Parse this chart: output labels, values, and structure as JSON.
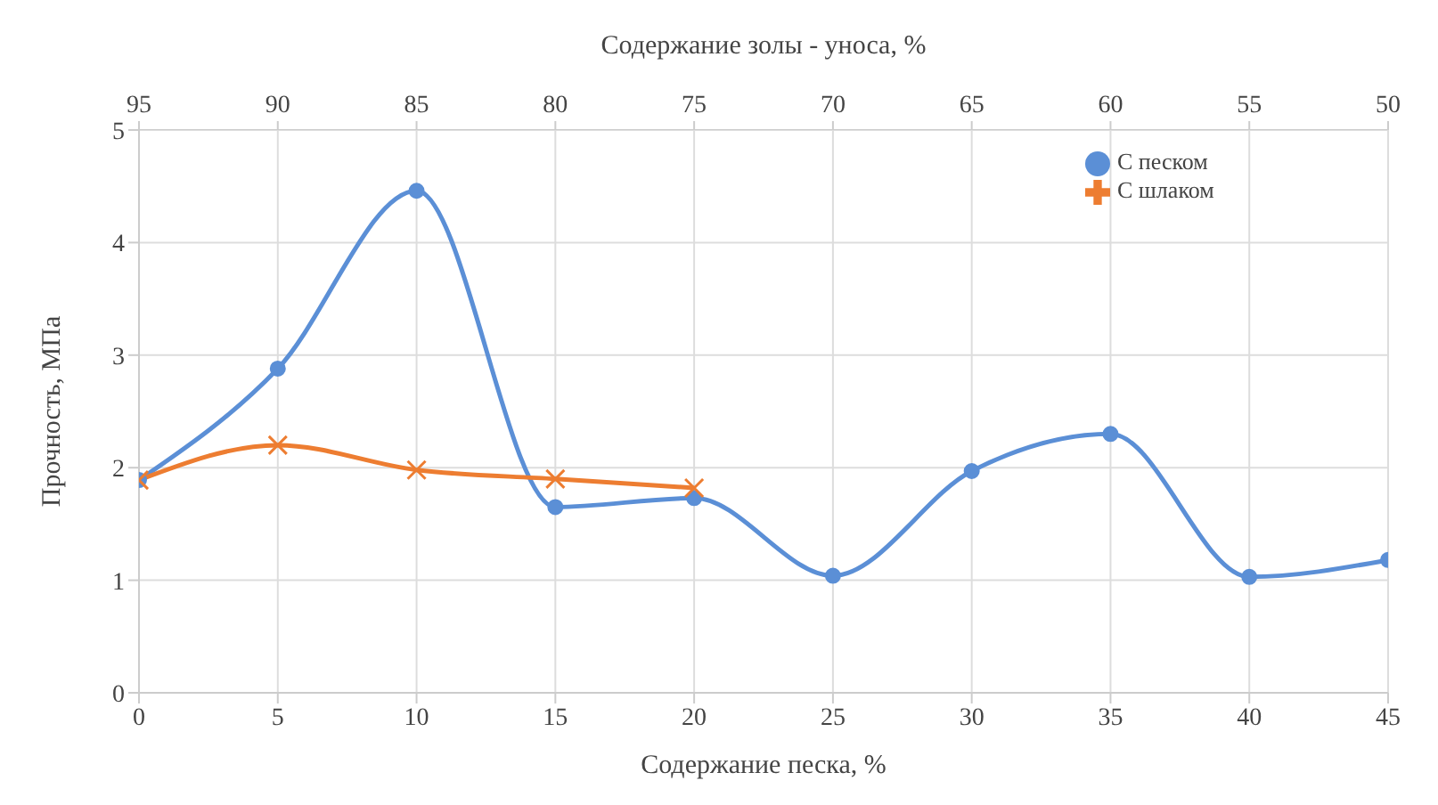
{
  "chart_data": {
    "type": "line",
    "xlabel": "Содержание песка, %",
    "x2label": "Содержание золы - уноса, %",
    "ylabel": "Прочность, МПа",
    "x": [
      0,
      5,
      10,
      15,
      20,
      25,
      30,
      35,
      40,
      45
    ],
    "xlim": [
      0,
      45
    ],
    "xticks": [
      0,
      5,
      10,
      15,
      20,
      25,
      30,
      35,
      40,
      45
    ],
    "x2lim": [
      95,
      50
    ],
    "x2ticks": [
      95,
      90,
      85,
      80,
      75,
      70,
      65,
      60,
      55,
      50
    ],
    "ylim": [
      0,
      5
    ],
    "yticks": [
      0,
      1,
      2,
      3,
      4,
      5
    ],
    "grid": true,
    "legend": "top right",
    "series": [
      {
        "name": "С песком",
        "color": "#5b8fd6",
        "marker": "circle",
        "values": [
          1.89,
          2.88,
          4.46,
          1.65,
          1.73,
          1.04,
          1.97,
          2.3,
          1.03,
          1.18
        ]
      },
      {
        "name": "С шлаком",
        "color": "#ed7d31",
        "marker": "cross",
        "values": [
          1.89,
          2.2,
          1.98,
          1.9,
          1.82,
          null,
          null,
          null,
          null,
          null
        ]
      }
    ]
  }
}
